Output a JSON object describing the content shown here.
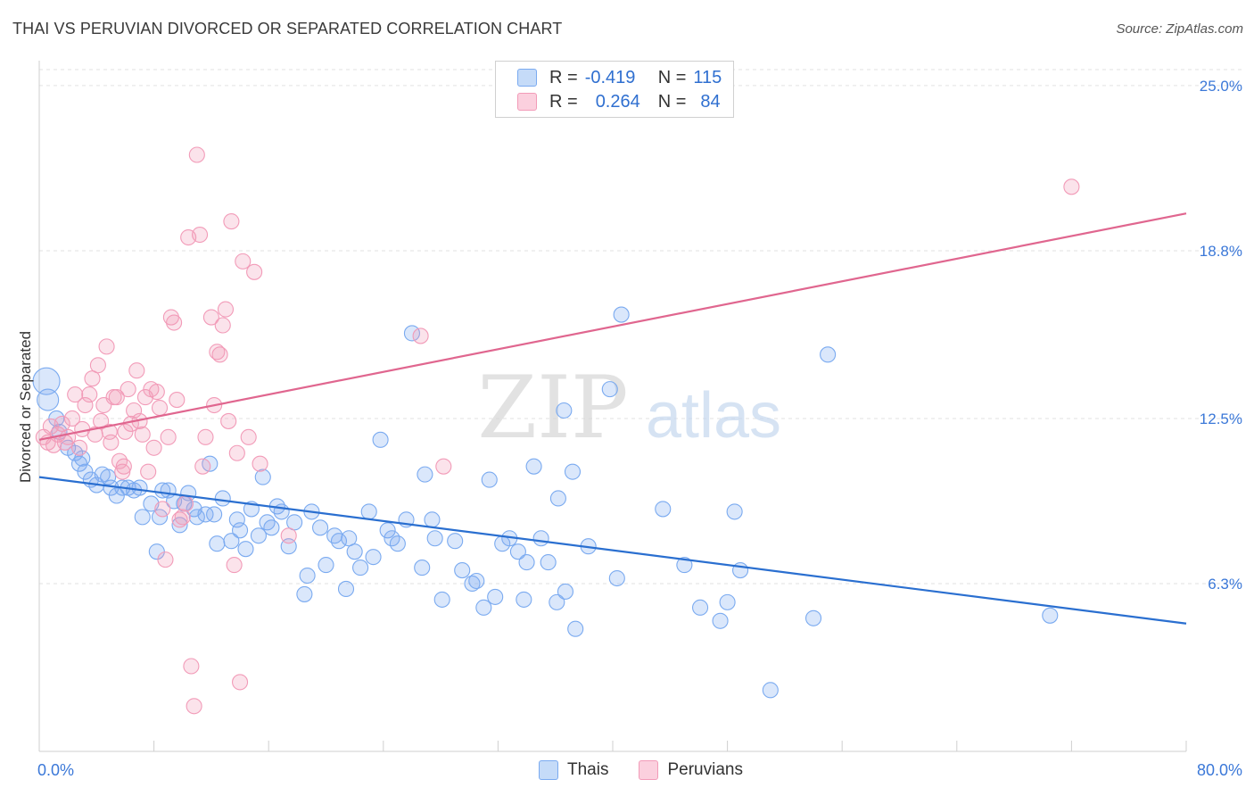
{
  "title": "THAI VS PERUVIAN DIVORCED OR SEPARATED CORRELATION CHART",
  "source": "Source: ZipAtlas.com",
  "watermark": {
    "zip": "ZIP",
    "atlas": "atlas"
  },
  "legend": {
    "rows": [
      {
        "r_label": "R =",
        "r_value": "-0.419",
        "n_label": "N =",
        "n_value": "115",
        "color": "#7aaaf0"
      },
      {
        "r_label": "R =",
        "r_value": "0.264",
        "n_label": "N =",
        "n_value": "84",
        "color": "#f29bb8"
      }
    ]
  },
  "bottom_legend": [
    {
      "label": "Thais",
      "color": "#7aaaf0"
    },
    {
      "label": "Peruvians",
      "color": "#f29bb8"
    }
  ],
  "chart_data": {
    "type": "scatter",
    "title": "THAI VS PERUVIAN DIVORCED OR SEPARATED CORRELATION CHART",
    "xlabel": "",
    "ylabel": "Divorced or Separated",
    "xlim": [
      0,
      80
    ],
    "ylim": [
      0,
      25.6
    ],
    "x_tick_labels": [
      "0.0%",
      "80.0%"
    ],
    "y_ticks": [
      6.3,
      12.5,
      18.8,
      25.0
    ],
    "y_tick_labels": [
      "6.3%",
      "12.5%",
      "18.8%",
      "25.0%"
    ],
    "grid": "horizontal dashed",
    "legend_position": "top-center",
    "series": [
      {
        "name": "Thais",
        "color": "#7aaaf0",
        "line_color": "#2a6fd0",
        "trend": {
          "x": [
            0,
            80
          ],
          "y": [
            10.3,
            4.8
          ]
        },
        "points": [
          [
            0.5,
            13.9
          ],
          [
            0.6,
            13.2
          ],
          [
            1.2,
            12.5
          ],
          [
            1.4,
            12.0
          ],
          [
            2.0,
            11.4
          ],
          [
            2.5,
            11.2
          ],
          [
            2.8,
            10.8
          ],
          [
            3.0,
            11.0
          ],
          [
            3.2,
            10.5
          ],
          [
            3.6,
            10.2
          ],
          [
            4.0,
            10.0
          ],
          [
            4.4,
            10.4
          ],
          [
            4.8,
            10.3
          ],
          [
            5.0,
            9.9
          ],
          [
            5.4,
            9.6
          ],
          [
            5.8,
            9.9
          ],
          [
            6.2,
            9.9
          ],
          [
            6.6,
            9.8
          ],
          [
            7.0,
            9.9
          ],
          [
            7.2,
            8.8
          ],
          [
            7.8,
            9.3
          ],
          [
            8.2,
            7.5
          ],
          [
            8.4,
            8.8
          ],
          [
            8.6,
            9.8
          ],
          [
            9.0,
            9.8
          ],
          [
            9.4,
            9.4
          ],
          [
            9.8,
            8.5
          ],
          [
            10.1,
            9.3
          ],
          [
            10.4,
            9.7
          ],
          [
            10.8,
            9.1
          ],
          [
            11.0,
            8.8
          ],
          [
            11.6,
            8.9
          ],
          [
            11.9,
            10.8
          ],
          [
            12.2,
            8.9
          ],
          [
            12.4,
            7.8
          ],
          [
            12.8,
            9.5
          ],
          [
            13.4,
            7.9
          ],
          [
            13.8,
            8.7
          ],
          [
            14.0,
            8.3
          ],
          [
            14.4,
            7.6
          ],
          [
            14.8,
            9.1
          ],
          [
            15.3,
            8.1
          ],
          [
            15.6,
            10.3
          ],
          [
            15.9,
            8.6
          ],
          [
            16.2,
            8.4
          ],
          [
            16.6,
            9.2
          ],
          [
            16.9,
            9.0
          ],
          [
            17.4,
            7.7
          ],
          [
            17.8,
            8.6
          ],
          [
            18.5,
            5.9
          ],
          [
            18.7,
            6.6
          ],
          [
            19.0,
            9.0
          ],
          [
            19.6,
            8.4
          ],
          [
            20.0,
            7.0
          ],
          [
            20.6,
            8.1
          ],
          [
            20.9,
            7.9
          ],
          [
            21.4,
            6.1
          ],
          [
            21.6,
            8.0
          ],
          [
            22.0,
            7.5
          ],
          [
            22.4,
            6.9
          ],
          [
            23.0,
            9.0
          ],
          [
            23.3,
            7.3
          ],
          [
            23.8,
            11.7
          ],
          [
            24.3,
            8.3
          ],
          [
            24.6,
            8.0
          ],
          [
            25.0,
            7.8
          ],
          [
            25.6,
            8.7
          ],
          [
            26.0,
            15.7
          ],
          [
            26.7,
            6.9
          ],
          [
            26.9,
            10.4
          ],
          [
            27.4,
            8.7
          ],
          [
            27.6,
            8.0
          ],
          [
            28.1,
            5.7
          ],
          [
            29.0,
            7.9
          ],
          [
            29.5,
            6.8
          ],
          [
            30.2,
            6.3
          ],
          [
            30.5,
            6.4
          ],
          [
            31.0,
            5.4
          ],
          [
            31.4,
            10.2
          ],
          [
            31.8,
            5.8
          ],
          [
            32.3,
            7.8
          ],
          [
            32.8,
            8.0
          ],
          [
            33.4,
            7.5
          ],
          [
            33.8,
            5.7
          ],
          [
            34.0,
            7.1
          ],
          [
            34.5,
            10.7
          ],
          [
            35.0,
            8.0
          ],
          [
            35.5,
            7.1
          ],
          [
            36.1,
            5.6
          ],
          [
            36.2,
            9.5
          ],
          [
            36.6,
            12.8
          ],
          [
            36.7,
            6.0
          ],
          [
            37.2,
            10.5
          ],
          [
            37.4,
            4.6
          ],
          [
            38.3,
            7.7
          ],
          [
            39.8,
            13.6
          ],
          [
            40.3,
            6.5
          ],
          [
            40.6,
            16.4
          ],
          [
            43.5,
            9.1
          ],
          [
            45.0,
            7.0
          ],
          [
            46.1,
            5.4
          ],
          [
            47.5,
            4.9
          ],
          [
            48.0,
            5.6
          ],
          [
            48.5,
            9.0
          ],
          [
            48.9,
            6.8
          ],
          [
            51.0,
            2.3
          ],
          [
            54.0,
            5.0
          ],
          [
            55.0,
            14.9
          ],
          [
            70.5,
            5.1
          ]
        ]
      },
      {
        "name": "Peruvians",
        "color": "#f29bb8",
        "line_color": "#e0668f",
        "trend": {
          "x": [
            0,
            80
          ],
          "y": [
            11.7,
            20.2
          ]
        },
        "points": [
          [
            0.3,
            11.8
          ],
          [
            0.6,
            11.6
          ],
          [
            0.8,
            12.2
          ],
          [
            1.0,
            11.5
          ],
          [
            1.3,
            11.9
          ],
          [
            1.6,
            12.3
          ],
          [
            1.8,
            11.6
          ],
          [
            2.0,
            11.8
          ],
          [
            2.3,
            12.5
          ],
          [
            2.5,
            13.4
          ],
          [
            2.8,
            11.4
          ],
          [
            3.0,
            12.1
          ],
          [
            3.2,
            13.0
          ],
          [
            3.5,
            13.4
          ],
          [
            3.7,
            14.0
          ],
          [
            3.9,
            11.9
          ],
          [
            4.1,
            14.5
          ],
          [
            4.3,
            12.4
          ],
          [
            4.5,
            13.0
          ],
          [
            4.7,
            15.2
          ],
          [
            4.9,
            12.0
          ],
          [
            5.0,
            11.6
          ],
          [
            5.2,
            13.3
          ],
          [
            5.4,
            13.3
          ],
          [
            5.6,
            10.9
          ],
          [
            5.8,
            10.5
          ],
          [
            5.9,
            10.7
          ],
          [
            6.0,
            12.0
          ],
          [
            6.2,
            13.6
          ],
          [
            6.4,
            12.3
          ],
          [
            6.6,
            12.8
          ],
          [
            6.8,
            14.3
          ],
          [
            7.0,
            12.4
          ],
          [
            7.2,
            11.9
          ],
          [
            7.4,
            13.3
          ],
          [
            7.6,
            10.5
          ],
          [
            7.8,
            13.6
          ],
          [
            8.0,
            11.4
          ],
          [
            8.2,
            13.5
          ],
          [
            8.4,
            12.9
          ],
          [
            8.6,
            9.1
          ],
          [
            8.8,
            7.2
          ],
          [
            9.0,
            11.8
          ],
          [
            9.2,
            16.3
          ],
          [
            9.4,
            16.1
          ],
          [
            9.6,
            13.2
          ],
          [
            9.8,
            8.7
          ],
          [
            10.0,
            8.8
          ],
          [
            10.2,
            9.3
          ],
          [
            10.4,
            19.3
          ],
          [
            10.6,
            3.2
          ],
          [
            10.8,
            1.7
          ],
          [
            11.0,
            22.4
          ],
          [
            11.2,
            19.4
          ],
          [
            11.4,
            10.7
          ],
          [
            11.6,
            11.8
          ],
          [
            12.0,
            16.3
          ],
          [
            12.2,
            13.0
          ],
          [
            12.4,
            15.0
          ],
          [
            12.6,
            14.9
          ],
          [
            12.8,
            16.0
          ],
          [
            13.0,
            16.6
          ],
          [
            13.2,
            12.4
          ],
          [
            13.4,
            19.9
          ],
          [
            13.6,
            7.0
          ],
          [
            13.8,
            11.2
          ],
          [
            14.0,
            2.6
          ],
          [
            14.2,
            18.4
          ],
          [
            14.6,
            11.8
          ],
          [
            15.0,
            18.0
          ],
          [
            15.4,
            10.8
          ],
          [
            17.4,
            8.1
          ],
          [
            26.6,
            15.6
          ],
          [
            28.2,
            10.7
          ],
          [
            72.0,
            21.2
          ]
        ]
      }
    ]
  }
}
